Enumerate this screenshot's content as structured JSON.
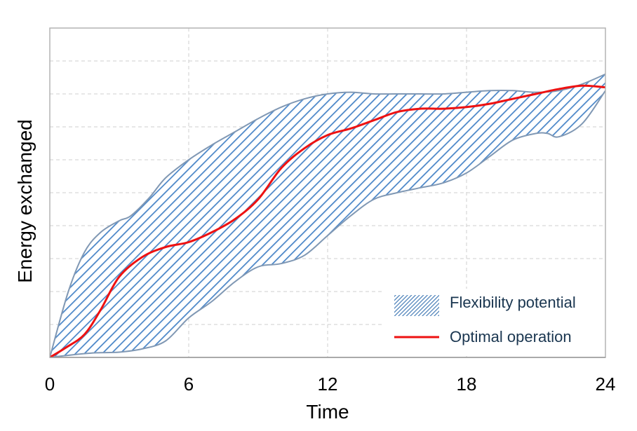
{
  "chart_data": {
    "type": "area",
    "title": "",
    "xlabel": "Time",
    "ylabel": "Energy exchanged",
    "xlim": [
      0,
      24
    ],
    "ylim": [
      0,
      100
    ],
    "x_ticks": [
      "0",
      "6",
      "12",
      "18",
      "24"
    ],
    "y_ticks_labeled": false,
    "grid": true,
    "legend_position": "bottom-right",
    "series": [
      {
        "name": "Flexibility potential",
        "kind": "band",
        "color": "#4a86c8",
        "edge_color": "#8098b4",
        "upper": [
          [
            0,
            0
          ],
          [
            0.8,
            20
          ],
          [
            1.5,
            32
          ],
          [
            2.2,
            38
          ],
          [
            3,
            41.5
          ],
          [
            3.5,
            43
          ],
          [
            4.3,
            48.5
          ],
          [
            5,
            54.5
          ],
          [
            6,
            60
          ],
          [
            7,
            64.5
          ],
          [
            8,
            68.5
          ],
          [
            9,
            72.5
          ],
          [
            10,
            76
          ],
          [
            11,
            78.5
          ],
          [
            12,
            80
          ],
          [
            13,
            80.5
          ],
          [
            14,
            80
          ],
          [
            15,
            80
          ],
          [
            16,
            80
          ],
          [
            17,
            80
          ],
          [
            18,
            80.5
          ],
          [
            19,
            81
          ],
          [
            20,
            81
          ],
          [
            21,
            80.5
          ],
          [
            22,
            81
          ],
          [
            23,
            83
          ],
          [
            24,
            86
          ]
        ],
        "lower": [
          [
            0,
            0
          ],
          [
            1,
            0.8
          ],
          [
            2,
            1.4
          ],
          [
            3,
            1.6
          ],
          [
            4,
            2.6
          ],
          [
            5,
            5
          ],
          [
            6,
            12
          ],
          [
            7,
            17
          ],
          [
            8,
            23
          ],
          [
            9,
            27.5
          ],
          [
            10,
            28.5
          ],
          [
            11,
            31
          ],
          [
            12,
            37
          ],
          [
            13,
            43
          ],
          [
            14,
            48
          ],
          [
            15,
            50
          ],
          [
            16,
            51.5
          ],
          [
            17,
            53
          ],
          [
            18,
            56
          ],
          [
            19,
            61
          ],
          [
            20,
            66
          ],
          [
            21,
            68
          ],
          [
            21.5,
            68
          ],
          [
            22,
            67
          ],
          [
            23,
            71
          ],
          [
            24,
            81
          ]
        ]
      },
      {
        "name": "Optimal operation",
        "kind": "line",
        "color": "#ee1111",
        "points": [
          [
            0,
            0
          ],
          [
            0.7,
            3
          ],
          [
            1.5,
            7
          ],
          [
            2.2,
            14.5
          ],
          [
            3,
            24.5
          ],
          [
            4,
            30.5
          ],
          [
            5,
            33.5
          ],
          [
            6,
            35
          ],
          [
            7,
            38
          ],
          [
            8,
            42
          ],
          [
            9,
            48
          ],
          [
            10,
            57.5
          ],
          [
            11,
            63.5
          ],
          [
            12,
            67.5
          ],
          [
            13,
            69.5
          ],
          [
            14,
            72
          ],
          [
            15,
            74.5
          ],
          [
            16,
            75.5
          ],
          [
            17,
            75.5
          ],
          [
            18,
            76
          ],
          [
            19,
            77
          ],
          [
            20,
            78.5
          ],
          [
            21,
            80
          ],
          [
            22,
            81.5
          ],
          [
            23,
            82.5
          ],
          [
            24,
            82
          ]
        ]
      }
    ]
  }
}
